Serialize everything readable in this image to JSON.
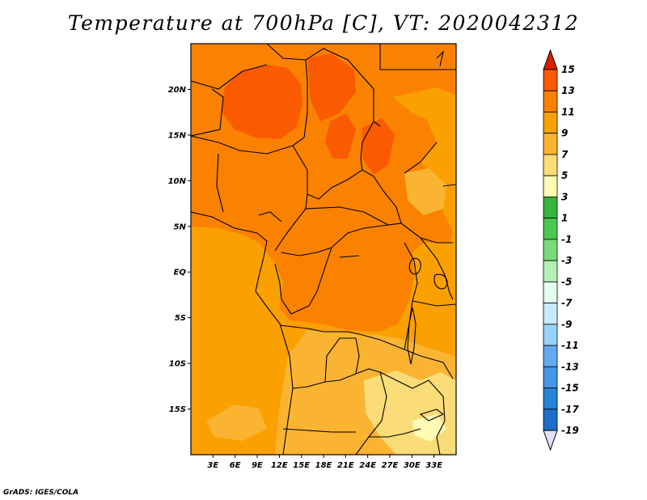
{
  "title": "Temperature at 700hPa [C], VT: 2020042312",
  "credit": "GrADS: IGES/COLA",
  "map": {
    "lon_range": [
      0,
      36
    ],
    "lat_range": [
      -20,
      25
    ],
    "lat_ticks": [
      {
        "lat": 20,
        "label": "20N"
      },
      {
        "lat": 15,
        "label": "15N"
      },
      {
        "lat": 10,
        "label": "10N"
      },
      {
        "lat": 5,
        "label": "5N"
      },
      {
        "lat": 0,
        "label": "EQ"
      },
      {
        "lat": -5,
        "label": "5S"
      },
      {
        "lat": -10,
        "label": "10S"
      },
      {
        "lat": -15,
        "label": "15S"
      }
    ],
    "lon_ticks": [
      {
        "lon": 3,
        "label": "3E"
      },
      {
        "lon": 6,
        "label": "6E"
      },
      {
        "lon": 9,
        "label": "9E"
      },
      {
        "lon": 12,
        "label": "12E"
      },
      {
        "lon": 15,
        "label": "15E"
      },
      {
        "lon": 18,
        "label": "18E"
      },
      {
        "lon": 21,
        "label": "21E"
      },
      {
        "lon": 24,
        "label": "24E"
      },
      {
        "lon": 27,
        "label": "27E"
      },
      {
        "lon": 30,
        "label": "30E"
      },
      {
        "lon": 33,
        "label": "33E"
      }
    ]
  },
  "colorbar": {
    "levels": [
      "15",
      "13",
      "11",
      "9",
      "7",
      "5",
      "3",
      "1",
      "-1",
      "-3",
      "-5",
      "-7",
      "-9",
      "-11",
      "-13",
      "-15",
      "-17",
      "-19"
    ],
    "colors": [
      "#fa3c00",
      "#fa5a00",
      "#fa8200",
      "#faa000",
      "#fab432",
      "#fadc78",
      "#fffab4",
      "#37b43c",
      "#4bc850",
      "#78dc78",
      "#b4f0b4",
      "#e6fff0",
      "#c8eaff",
      "#96d2fa",
      "#64aaf0",
      "#4696e6",
      "#2882d7",
      "#1e6ec8",
      "#1450b4",
      "#0a28a0"
    ],
    "top_arrow_color": "#dc1e00",
    "bottom_arrow_color": "#e1e1ff"
  }
}
